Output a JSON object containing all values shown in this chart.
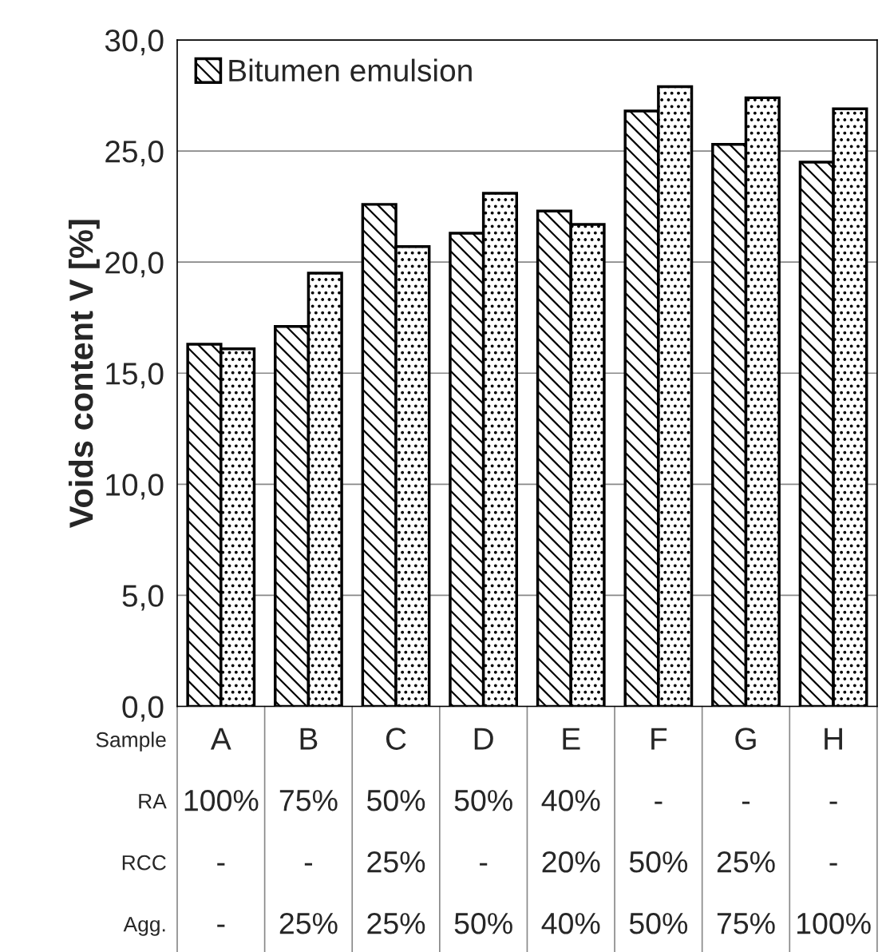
{
  "chart_data": {
    "type": "bar",
    "ylabel": "Voids content V [%]",
    "categories": [
      "A\n100%\n-\n-",
      "B\n75%\n-\n25%",
      "C\n50%\n25%\n25%",
      "D\n50%\n-\n50%",
      "E\n40%\n20%\n40%",
      "F\n-\n50%\n50%",
      "G\n-\n25%\n75%",
      "H\n-\n-\n100%"
    ],
    "series": [
      {
        "name": "Bitumen emulsion",
        "color": "#000000",
        "values": [
          16.3,
          17.1,
          22.6,
          21.3,
          22.3,
          26.8,
          25.3,
          24.5
        ]
      },
      {
        "color": "#000000",
        "values": [
          16.1,
          19.5,
          20.7,
          23.1,
          21.7,
          27.9,
          27.4,
          26.9
        ]
      }
    ],
    "ylim": [
      0,
      30
    ],
    "yticks": [
      {
        "value": 0,
        "label": "0,0"
      },
      {
        "value": 5,
        "label": "5,0"
      },
      {
        "value": 10,
        "label": "10,0"
      },
      {
        "value": 15,
        "label": "15,0"
      },
      {
        "value": 20,
        "label": "20,0"
      },
      {
        "value": 25,
        "label": "25,0"
      },
      {
        "value": 30,
        "label": "30,0"
      }
    ],
    "grid": "y",
    "legend": "top left",
    "annotations": [
      "Sample",
      "RA",
      "RCC",
      "Agg."
    ]
  }
}
